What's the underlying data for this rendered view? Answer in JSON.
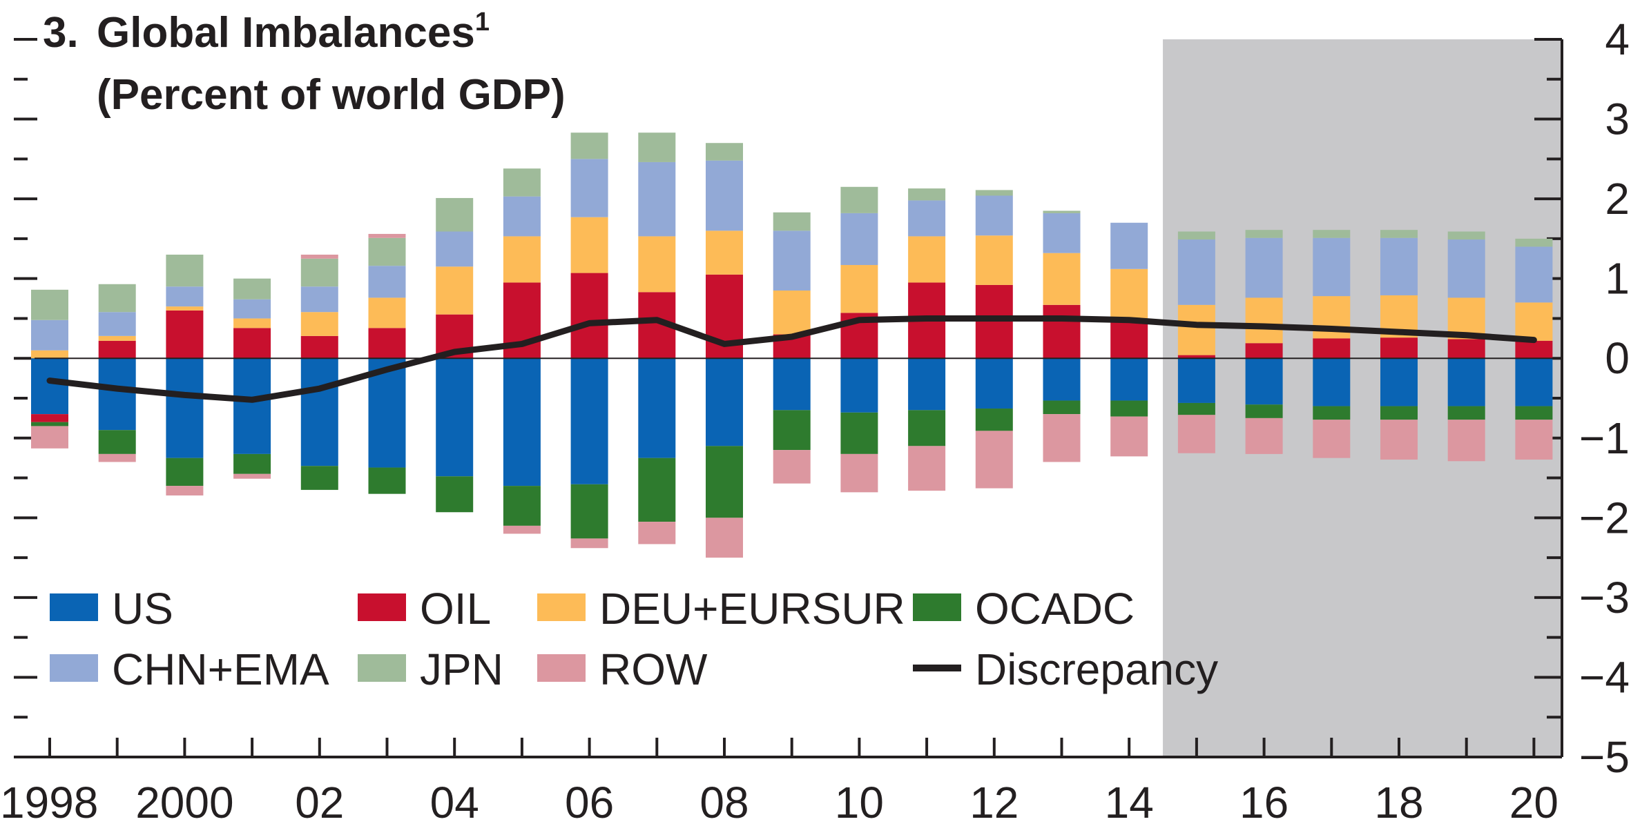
{
  "chart_data": {
    "type": "bar",
    "title_number": "3.",
    "title": "Global Imbalances",
    "title_superscript": "1",
    "subtitle": "(Percent of world GDP)",
    "x": [
      "1998",
      "1999",
      "2000",
      "2001",
      "2002",
      "2003",
      "2004",
      "2005",
      "2006",
      "2007",
      "2008",
      "2009",
      "2010",
      "2011",
      "2012",
      "2013",
      "2014",
      "2015",
      "2016",
      "2017",
      "2018",
      "2019",
      "2020"
    ],
    "x_tick_labels": [
      "1998",
      "2000",
      "02",
      "04",
      "06",
      "08",
      "10",
      "12",
      "14",
      "16",
      "18",
      "20"
    ],
    "x_tick_label_years": [
      "1998",
      "2000",
      "2002",
      "2004",
      "2006",
      "2008",
      "2010",
      "2012",
      "2014",
      "2016",
      "2018",
      "2020"
    ],
    "ylim": [
      -5,
      4
    ],
    "y_ticks": [
      "4",
      "3",
      "2",
      "1",
      "0",
      "−1",
      "−2",
      "−3",
      "−4",
      "−5"
    ],
    "y_axis_side": "right",
    "projection_shading_from": "2015",
    "projection_color": "#c8c8ca",
    "stacked": true,
    "series": [
      {
        "name": "US",
        "color": "#0a64b4",
        "values": [
          -0.7,
          -0.9,
          -1.25,
          -1.2,
          -1.35,
          -1.37,
          -1.48,
          -1.6,
          -1.58,
          -1.25,
          -1.1,
          -0.65,
          -0.68,
          -0.65,
          -0.63,
          -0.53,
          -0.53,
          -0.56,
          -0.58,
          -0.6,
          -0.6,
          -0.6,
          -0.6
        ]
      },
      {
        "name": "OIL",
        "color": "#c8102e",
        "values": [
          -0.1,
          0.22,
          0.6,
          0.38,
          0.28,
          0.38,
          0.55,
          0.95,
          1.07,
          0.83,
          1.05,
          0.3,
          0.57,
          0.95,
          0.92,
          0.67,
          0.45,
          0.04,
          0.19,
          0.25,
          0.26,
          0.24,
          0.22
        ]
      },
      {
        "name": "DEU+EURSUR",
        "color": "#fdbb57",
        "values": [
          0.1,
          0.06,
          0.05,
          0.12,
          0.3,
          0.38,
          0.6,
          0.58,
          0.7,
          0.7,
          0.55,
          0.55,
          0.6,
          0.58,
          0.62,
          0.65,
          0.67,
          0.63,
          0.57,
          0.53,
          0.53,
          0.52,
          0.48
        ]
      },
      {
        "name": "OCADC",
        "color": "#2e7b2e",
        "values": [
          -0.05,
          -0.3,
          -0.35,
          -0.25,
          -0.3,
          -0.33,
          -0.45,
          -0.5,
          -0.68,
          -0.8,
          -0.9,
          -0.5,
          -0.52,
          -0.45,
          -0.28,
          -0.17,
          -0.2,
          -0.15,
          -0.17,
          -0.17,
          -0.17,
          -0.17,
          -0.17
        ]
      },
      {
        "name": "CHN+EMA",
        "color": "#92a9d6",
        "values": [
          0.38,
          0.3,
          0.25,
          0.24,
          0.32,
          0.4,
          0.44,
          0.5,
          0.73,
          0.93,
          0.88,
          0.75,
          0.65,
          0.45,
          0.5,
          0.5,
          0.58,
          0.82,
          0.75,
          0.73,
          0.72,
          0.73,
          0.7
        ]
      },
      {
        "name": "JPN",
        "color": "#9fbb9a",
        "values": [
          0.38,
          0.35,
          0.4,
          0.26,
          0.35,
          0.35,
          0.42,
          0.35,
          0.33,
          0.37,
          0.22,
          0.23,
          0.33,
          0.15,
          0.07,
          0.03,
          0.0,
          0.1,
          0.1,
          0.1,
          0.1,
          0.1,
          0.1
        ]
      },
      {
        "name": "ROW",
        "color": "#dc97a0",
        "values": [
          -0.28,
          -0.1,
          -0.12,
          -0.06,
          0.05,
          0.05,
          0.0,
          -0.1,
          -0.12,
          -0.28,
          -0.5,
          -0.42,
          -0.48,
          -0.56,
          -0.72,
          -0.6,
          -0.5,
          -0.48,
          -0.45,
          -0.48,
          -0.5,
          -0.52,
          -0.5
        ]
      }
    ],
    "line_series": {
      "name": "Discrepancy",
      "color": "#231f20",
      "values": [
        -0.28,
        -0.38,
        -0.46,
        -0.52,
        -0.38,
        -0.14,
        0.08,
        0.18,
        0.44,
        0.48,
        0.18,
        0.27,
        0.48,
        0.5,
        0.5,
        0.5,
        0.48,
        0.42,
        0.4,
        0.37,
        0.33,
        0.29,
        0.23
      ]
    },
    "legend": {
      "placement": "lower-left",
      "entries": [
        {
          "label": "US",
          "kind": "swatch",
          "color": "#0a64b4"
        },
        {
          "label": "OIL",
          "kind": "swatch",
          "color": "#c8102e"
        },
        {
          "label": "DEU+EURSUR",
          "kind": "swatch",
          "color": "#fdbb57"
        },
        {
          "label": "OCADC",
          "kind": "swatch",
          "color": "#2e7b2e"
        },
        {
          "label": "CHN+EMA",
          "kind": "swatch",
          "color": "#92a9d6"
        },
        {
          "label": "JPN",
          "kind": "swatch",
          "color": "#9fbb9a"
        },
        {
          "label": "ROW",
          "kind": "swatch",
          "color": "#dc97a0"
        },
        {
          "label": "Discrepancy",
          "kind": "line",
          "color": "#231f20"
        }
      ]
    },
    "grid": false
  }
}
